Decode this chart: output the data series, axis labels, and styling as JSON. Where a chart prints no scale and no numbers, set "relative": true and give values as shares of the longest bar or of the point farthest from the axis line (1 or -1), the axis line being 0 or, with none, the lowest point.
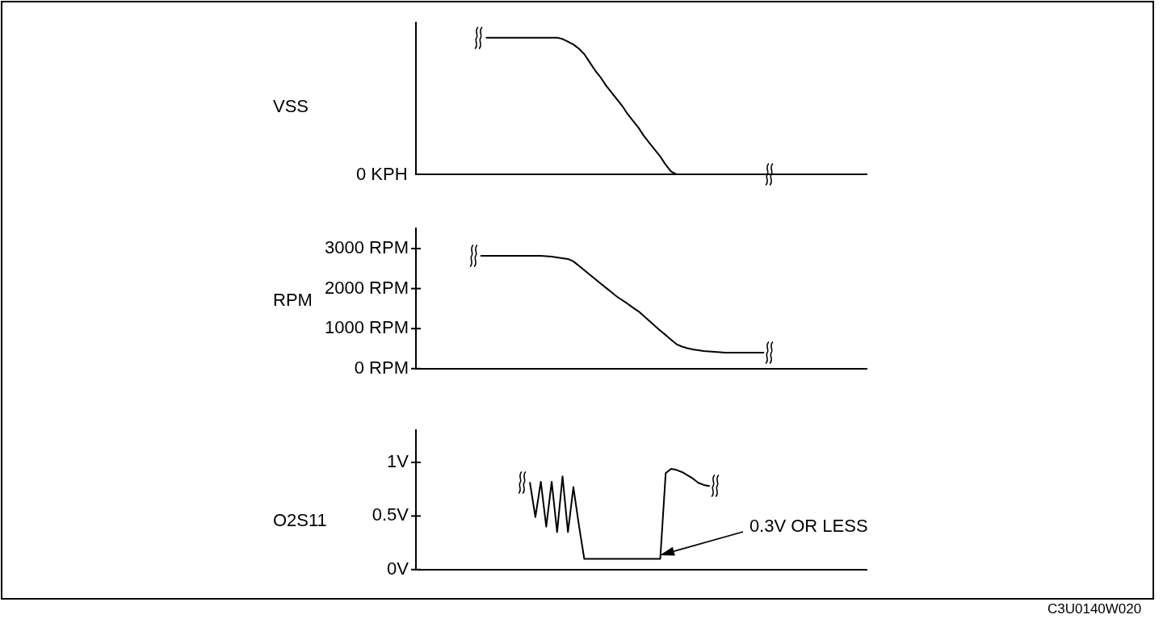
{
  "chart_data": [
    {
      "type": "line",
      "ylabel": "VSS",
      "relative": true,
      "color": "#000000",
      "categories": [
        null,
        null,
        null,
        null,
        null,
        null,
        null,
        null,
        null,
        null,
        null,
        null,
        null,
        null,
        null,
        null,
        null,
        null,
        null,
        null,
        null,
        null,
        null,
        null,
        null,
        null,
        null,
        null,
        null,
        null,
        null,
        null,
        null,
        null,
        null,
        null,
        null,
        null,
        null,
        null,
        null,
        null,
        null,
        null,
        null,
        null,
        null,
        null,
        null,
        null,
        null,
        null,
        null,
        null,
        null,
        null,
        null,
        null,
        null,
        null,
        null,
        null,
        null,
        null,
        null,
        null,
        null,
        null,
        null,
        null,
        null,
        null,
        null,
        null,
        null,
        null,
        null,
        null,
        null,
        null,
        null,
        null,
        null,
        null
      ],
      "values": [
        null,
        null,
        null,
        null,
        null,
        null,
        null,
        null,
        null,
        null,
        null,
        null,
        null,
        1,
        1,
        1,
        1,
        1,
        1,
        1,
        1,
        1,
        1,
        1,
        1,
        1,
        1,
        0.99,
        0.97,
        0.95,
        0.92,
        0.88,
        0.82,
        0.76,
        0.71,
        0.65,
        0.6,
        0.55,
        0.5,
        0.44,
        0.39,
        0.34,
        0.28,
        0.23,
        0.18,
        0.13,
        0.07,
        0.02,
        0,
        0,
        0,
        0,
        0,
        0,
        0,
        0,
        0,
        0,
        0,
        0,
        0,
        0,
        0,
        0,
        0,
        null,
        null,
        null,
        null,
        null,
        null,
        null,
        null,
        null,
        null,
        null,
        null,
        null,
        null,
        null,
        null,
        null,
        null,
        null
      ],
      "annotations": [
        "0 KPH"
      ]
    },
    {
      "type": "line",
      "ylabel": "RPM",
      "color": "#000000",
      "ylim": [
        0,
        3500
      ],
      "yticks": [
        {
          "value": 0,
          "label": "0 RPM"
        },
        {
          "value": 1000,
          "label": "1000 RPM"
        },
        {
          "value": 2000,
          "label": "2000 RPM"
        },
        {
          "value": 3000,
          "label": "3000 RPM"
        }
      ],
      "categories": [
        null,
        null,
        null,
        null,
        null,
        null,
        null,
        null,
        null,
        null,
        null,
        null,
        null,
        null,
        null,
        null,
        null,
        null,
        null,
        null,
        null,
        null,
        null,
        null,
        null,
        null,
        null,
        null,
        null,
        null,
        null,
        null,
        null,
        null,
        null,
        null,
        null,
        null,
        null,
        null,
        null,
        null,
        null,
        null,
        null,
        null,
        null,
        null,
        null,
        null,
        null,
        null,
        null,
        null,
        null,
        null,
        null,
        null,
        null,
        null,
        null,
        null,
        null,
        null,
        null,
        null,
        null,
        null,
        null,
        null,
        null,
        null,
        null,
        null,
        null,
        null,
        null,
        null,
        null,
        null,
        null,
        null,
        null,
        null
      ],
      "values": [
        null,
        null,
        null,
        null,
        null,
        null,
        null,
        null,
        null,
        null,
        null,
        null,
        2820,
        2820,
        2820,
        2820,
        2820,
        2820,
        2820,
        2820,
        2820,
        2820,
        2820,
        2820,
        2810,
        2800,
        2780,
        2760,
        2740,
        2680,
        2570,
        2460,
        2350,
        2240,
        2130,
        2020,
        1910,
        1800,
        1710,
        1620,
        1520,
        1430,
        1310,
        1190,
        1070,
        950,
        840,
        720,
        610,
        550,
        510,
        480,
        460,
        440,
        430,
        420,
        410,
        400,
        400,
        400,
        400,
        400,
        400,
        400,
        400,
        null,
        null,
        null,
        null,
        null,
        null,
        null,
        null,
        null,
        null,
        null,
        null,
        null,
        null,
        null,
        null,
        null,
        null,
        null
      ]
    },
    {
      "type": "line",
      "ylabel": "O2S11",
      "color": "#000000",
      "ylim": [
        0,
        1.3
      ],
      "yticks": [
        {
          "value": 0,
          "label": "0V"
        },
        {
          "value": 0.5,
          "label": "0.5V"
        },
        {
          "value": 1,
          "label": "1V"
        }
      ],
      "categories": [
        null,
        null,
        null,
        null,
        null,
        null,
        null,
        null,
        null,
        null,
        null,
        null,
        null,
        null,
        null,
        null,
        null,
        null,
        null,
        null,
        null,
        null,
        null,
        null,
        null,
        null,
        null,
        null,
        null,
        null,
        null,
        null,
        null,
        null,
        null,
        null,
        null,
        null,
        null,
        null,
        null,
        null,
        null,
        null,
        null,
        null,
        null,
        null,
        null,
        null,
        null,
        null,
        null,
        null,
        null,
        null,
        null,
        null,
        null,
        null,
        null,
        null,
        null,
        null,
        null,
        null,
        null,
        null,
        null,
        null,
        null,
        null,
        null,
        null,
        null,
        null,
        null,
        null,
        null,
        null,
        null,
        null,
        null,
        null
      ],
      "values": [
        null,
        null,
        null,
        null,
        null,
        null,
        null,
        null,
        null,
        null,
        null,
        null,
        null,
        null,
        null,
        null,
        null,
        null,
        null,
        null,
        null,
        0.81,
        0.49,
        0.82,
        0.4,
        0.82,
        0.35,
        0.87,
        0.35,
        0.77,
        0.42,
        0.1,
        0.1,
        0.1,
        0.1,
        0.1,
        0.1,
        0.1,
        0.1,
        0.1,
        0.1,
        0.1,
        0.1,
        0.1,
        0.1,
        0.1,
        0.9,
        0.94,
        0.93,
        0.91,
        0.88,
        0.85,
        0.81,
        0.79,
        0.78,
        null,
        null,
        null,
        null,
        null,
        null,
        null,
        null,
        null,
        null,
        null,
        null,
        null,
        null,
        null,
        null,
        null,
        null,
        null,
        null,
        null,
        null,
        null,
        null,
        null,
        null,
        null,
        null,
        null
      ],
      "annotations": [
        "0.3V OR LESS",
        "C3U0140W020"
      ]
    }
  ]
}
